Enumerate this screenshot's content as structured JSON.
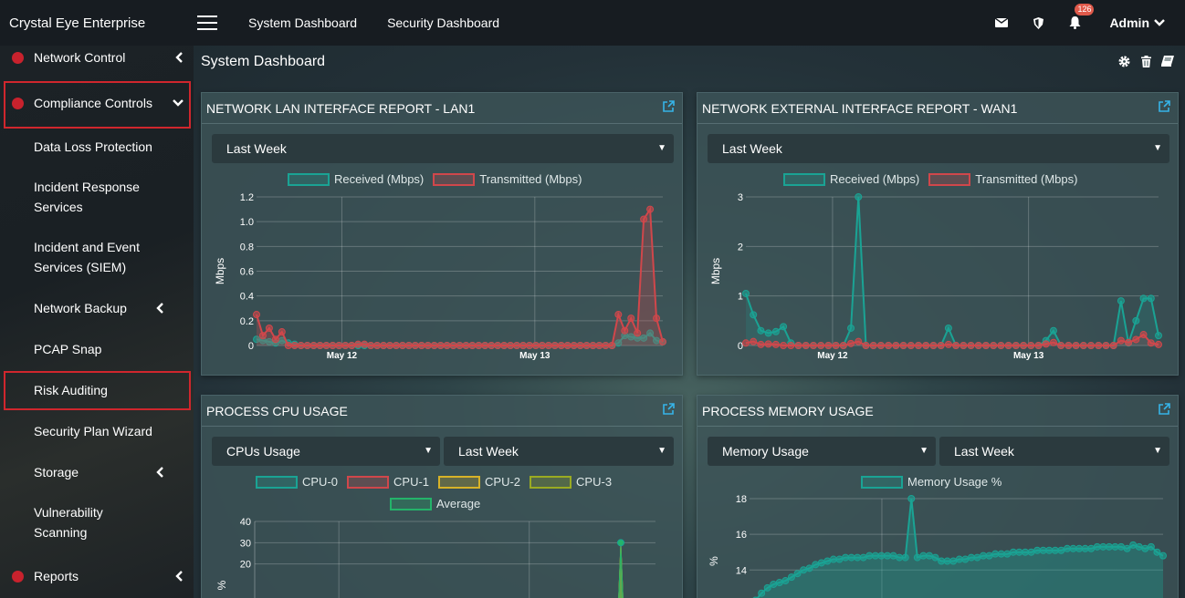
{
  "app": {
    "title": "Crystal Eye Enterprise"
  },
  "topnav": {
    "items": [
      "System Dashboard",
      "Security Dashboard"
    ]
  },
  "topright": {
    "notification_count": "126",
    "user": "Admin"
  },
  "sidebar": {
    "items": [
      {
        "label": "Network Control"
      },
      {
        "label": "Compliance Controls"
      },
      {
        "label": "Data Loss Protection"
      },
      {
        "label": "Incident Response Services"
      },
      {
        "label": "Incident and Event Services (SIEM)"
      },
      {
        "label": "Network Backup"
      },
      {
        "label": "PCAP Snap"
      },
      {
        "label": "Risk Auditing"
      },
      {
        "label": "Security Plan Wizard"
      },
      {
        "label": "Storage"
      },
      {
        "label": "Vulnerability Scanning"
      },
      {
        "label": "Reports"
      }
    ]
  },
  "page": {
    "title": "System Dashboard"
  },
  "panels": {
    "lan": {
      "title": "NETWORK LAN INTERFACE REPORT - LAN1",
      "range": "Last Week"
    },
    "wan": {
      "title": "NETWORK EXTERNAL INTERFACE REPORT - WAN1",
      "range": "Last Week"
    },
    "cpu": {
      "title": "PROCESS CPU USAGE",
      "metric": "CPUs Usage",
      "range": "Last Week"
    },
    "mem": {
      "title": "PROCESS MEMORY USAGE",
      "metric": "Memory Usage",
      "range": "Last Week"
    }
  },
  "colors": {
    "teal": "#1aa394",
    "red": "#d0474b",
    "yellow": "#d7b228",
    "olive": "#9aab22",
    "green": "#24b36a",
    "accent": "#36b4e8",
    "highlight": "#d0262d"
  },
  "chart_data": [
    {
      "type": "line",
      "title": "NETWORK LAN INTERFACE REPORT - LAN1",
      "ylabel": "Mbps",
      "ylim": [
        0,
        1.2
      ],
      "yticks": [
        "0",
        "0.2",
        "0.4",
        "0.6",
        "0.8",
        "1.0",
        "1.2"
      ],
      "xticks": [
        "May 12",
        "May 13"
      ],
      "series": [
        {
          "name": "Received (Mbps)",
          "values": [
            0.05,
            0.04,
            0.03,
            0.02,
            0.04,
            0.02,
            0.01,
            0,
            0,
            0,
            0,
            0,
            0,
            0,
            0,
            0,
            0,
            0,
            0,
            0,
            0,
            0,
            0,
            0,
            0,
            0,
            0,
            0,
            0,
            0,
            0,
            0,
            0,
            0,
            0,
            0,
            0,
            0,
            0,
            0,
            0,
            0,
            0,
            0,
            0,
            0,
            0,
            0,
            0,
            0,
            0,
            0,
            0,
            0,
            0,
            0,
            0,
            0.02,
            0.08,
            0.07,
            0.06,
            0.06,
            0.1,
            0.04,
            0.03
          ]
        },
        {
          "name": "Transmitted (Mbps)",
          "values": [
            0.25,
            0.08,
            0.14,
            0.05,
            0.11,
            0,
            0,
            0,
            0,
            0,
            0,
            0,
            0,
            0,
            0,
            0,
            0.01,
            0.01,
            0,
            0,
            0,
            0,
            0,
            0,
            0,
            0,
            0,
            0,
            0,
            0,
            0,
            0,
            0,
            0,
            0,
            0,
            0,
            0,
            0,
            0,
            0,
            0,
            0,
            0,
            0,
            0,
            0,
            0,
            0,
            0,
            0,
            0,
            0,
            0,
            0,
            0,
            0,
            0.25,
            0.12,
            0.22,
            0.1,
            1.02,
            1.1,
            0.22,
            0.03
          ]
        }
      ]
    },
    {
      "type": "line",
      "title": "NETWORK EXTERNAL INTERFACE REPORT - WAN1",
      "ylabel": "Mbps",
      "ylim": [
        0,
        3
      ],
      "yticks": [
        "0",
        "1",
        "2",
        "3"
      ],
      "xticks": [
        "May 12",
        "May 13"
      ],
      "series": [
        {
          "name": "Received (Mbps)",
          "values": [
            1.05,
            0.62,
            0.3,
            0.25,
            0.28,
            0.38,
            0.05,
            0,
            0,
            0,
            0,
            0,
            0,
            0,
            0.35,
            3.0,
            0,
            0,
            0,
            0,
            0,
            0,
            0,
            0,
            0,
            0,
            0,
            0.35,
            0,
            0,
            0,
            0,
            0,
            0,
            0,
            0,
            0,
            0,
            0,
            0,
            0.1,
            0.3,
            0,
            0,
            0,
            0,
            0,
            0,
            0,
            0,
            0.9,
            0.05,
            0.5,
            0.95,
            0.95,
            0.2
          ]
        },
        {
          "name": "Transmitted (Mbps)",
          "values": [
            0.05,
            0.08,
            0.02,
            0.03,
            0.02,
            0,
            0,
            0,
            0,
            0,
            0,
            0,
            0,
            0,
            0.04,
            0.08,
            0,
            0,
            0,
            0,
            0,
            0,
            0,
            0,
            0,
            0,
            0,
            0.02,
            0,
            0,
            0,
            0,
            0,
            0,
            0,
            0,
            0,
            0,
            0,
            0,
            0.03,
            0.06,
            0,
            0,
            0,
            0,
            0,
            0,
            0,
            0,
            0.1,
            0.06,
            0.12,
            0.22,
            0.05,
            0.02
          ]
        }
      ]
    },
    {
      "type": "line",
      "title": "PROCESS CPU USAGE",
      "ylabel": "%",
      "ylim": [
        10,
        40
      ],
      "yticks": [
        "20",
        "30",
        "40"
      ],
      "series": [
        {
          "name": "CPU-0",
          "values": []
        },
        {
          "name": "CPU-1",
          "values": []
        },
        {
          "name": "CPU-2",
          "values": []
        },
        {
          "name": "CPU-3",
          "values": []
        },
        {
          "name": "Average",
          "values": []
        }
      ],
      "spike": {
        "value": 30
      }
    },
    {
      "type": "area",
      "title": "PROCESS MEMORY USAGE",
      "ylabel": "%",
      "ylim": [
        11,
        18
      ],
      "yticks": [
        "12",
        "14",
        "16",
        "18"
      ],
      "series": [
        {
          "name": "Memory Usage %",
          "values": [
            11.8,
            12.3,
            12.7,
            13.0,
            13.2,
            13.3,
            13.4,
            13.6,
            13.8,
            14.0,
            14.1,
            14.3,
            14.4,
            14.5,
            14.6,
            14.6,
            14.7,
            14.7,
            14.7,
            14.7,
            14.8,
            14.8,
            14.8,
            14.8,
            14.8,
            14.7,
            14.7,
            18.0,
            14.7,
            14.8,
            14.8,
            14.7,
            14.5,
            14.5,
            14.5,
            14.6,
            14.6,
            14.7,
            14.7,
            14.8,
            14.8,
            14.9,
            14.9,
            14.9,
            15.0,
            15.0,
            15.0,
            15.0,
            15.1,
            15.1,
            15.1,
            15.1,
            15.1,
            15.2,
            15.2,
            15.2,
            15.2,
            15.2,
            15.3,
            15.3,
            15.3,
            15.3,
            15.3,
            15.2,
            15.4,
            15.3,
            15.2,
            15.3,
            15.0,
            14.8
          ]
        }
      ]
    }
  ]
}
